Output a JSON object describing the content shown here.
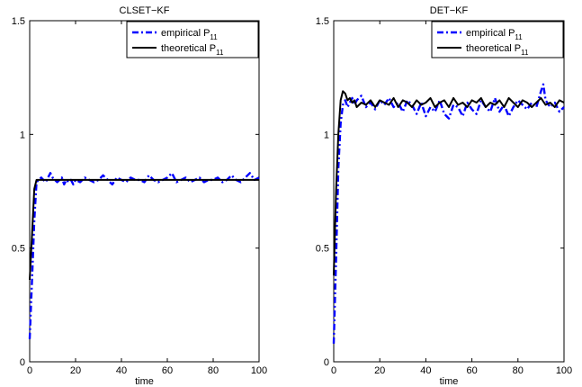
{
  "chart_data": [
    {
      "type": "line",
      "title": "CLSET−KF",
      "xlabel": "time",
      "ylabel": "",
      "xlim": [
        0,
        100
      ],
      "ylim": [
        0,
        1.5
      ],
      "xticks": [
        0,
        20,
        40,
        60,
        80,
        100
      ],
      "yticks": [
        0,
        0.5,
        1,
        1.5
      ],
      "xtick_labels": [
        "0",
        "20",
        "40",
        "60",
        "80",
        "100"
      ],
      "ytick_labels": [
        "0",
        "0.5",
        "1",
        "1.5"
      ],
      "grid": false,
      "legend_position": "top-right",
      "series": [
        {
          "name": "empirical P11",
          "label_main": "empirical P",
          "label_sub": "11",
          "color": "#0000ff",
          "style": "dash-dot",
          "x": [
            0,
            1,
            2,
            3,
            4,
            5,
            6,
            7,
            8,
            9,
            10,
            11,
            12,
            13,
            14,
            15,
            16,
            17,
            18,
            19,
            20,
            22,
            24,
            26,
            28,
            30,
            32,
            34,
            36,
            38,
            40,
            42,
            44,
            46,
            48,
            50,
            52,
            54,
            56,
            58,
            60,
            62,
            64,
            66,
            68,
            70,
            72,
            74,
            76,
            78,
            80,
            82,
            84,
            86,
            88,
            90,
            92,
            94,
            96,
            98,
            100
          ],
          "y": [
            0.1,
            0.35,
            0.62,
            0.79,
            0.8,
            0.81,
            0.8,
            0.79,
            0.81,
            0.83,
            0.81,
            0.8,
            0.79,
            0.8,
            0.81,
            0.78,
            0.8,
            0.79,
            0.8,
            0.78,
            0.8,
            0.79,
            0.81,
            0.8,
            0.79,
            0.8,
            0.82,
            0.8,
            0.78,
            0.81,
            0.8,
            0.79,
            0.81,
            0.8,
            0.8,
            0.79,
            0.82,
            0.8,
            0.79,
            0.8,
            0.81,
            0.83,
            0.79,
            0.8,
            0.81,
            0.79,
            0.8,
            0.81,
            0.79,
            0.8,
            0.8,
            0.81,
            0.79,
            0.8,
            0.82,
            0.8,
            0.79,
            0.81,
            0.83,
            0.8,
            0.81
          ]
        },
        {
          "name": "theoretical P11",
          "label_main": "theoretical P",
          "label_sub": "11",
          "color": "#000000",
          "style": "solid",
          "x": [
            0,
            1,
            2,
            3,
            4,
            5,
            6,
            8,
            10,
            15,
            20,
            30,
            40,
            50,
            60,
            70,
            80,
            90,
            100
          ],
          "y": [
            0.36,
            0.55,
            0.76,
            0.8,
            0.8,
            0.8,
            0.8,
            0.8,
            0.8,
            0.8,
            0.8,
            0.8,
            0.8,
            0.8,
            0.8,
            0.8,
            0.8,
            0.8,
            0.8
          ]
        }
      ]
    },
    {
      "type": "line",
      "title": "DET−KF",
      "xlabel": "time",
      "ylabel": "",
      "xlim": [
        0,
        100
      ],
      "ylim": [
        0,
        1.5
      ],
      "xticks": [
        0,
        20,
        40,
        60,
        80,
        100
      ],
      "yticks": [
        0,
        0.5,
        1,
        1.5
      ],
      "xtick_labels": [
        "0",
        "20",
        "40",
        "60",
        "80",
        "100"
      ],
      "ytick_labels": [
        "0",
        "0.5",
        "1",
        "1.5"
      ],
      "grid": false,
      "legend_position": "top-right",
      "series": [
        {
          "name": "empirical P11",
          "label_main": "empirical P",
          "label_sub": "11",
          "color": "#0000ff",
          "style": "dash-dot",
          "x": [
            0,
            1,
            2,
            3,
            4,
            5,
            6,
            7,
            8,
            9,
            10,
            12,
            14,
            16,
            18,
            20,
            22,
            24,
            26,
            28,
            30,
            32,
            34,
            36,
            38,
            40,
            42,
            44,
            46,
            48,
            50,
            52,
            54,
            56,
            58,
            60,
            62,
            64,
            66,
            68,
            70,
            72,
            74,
            76,
            78,
            80,
            82,
            84,
            86,
            88,
            90,
            91,
            92,
            94,
            96,
            98,
            100
          ],
          "y": [
            0.08,
            0.45,
            0.85,
            1.05,
            1.13,
            1.15,
            1.12,
            1.14,
            1.16,
            1.13,
            1.15,
            1.17,
            1.12,
            1.14,
            1.11,
            1.15,
            1.13,
            1.16,
            1.12,
            1.14,
            1.1,
            1.15,
            1.13,
            1.09,
            1.14,
            1.08,
            1.12,
            1.1,
            1.15,
            1.09,
            1.07,
            1.13,
            1.12,
            1.08,
            1.14,
            1.11,
            1.09,
            1.15,
            1.12,
            1.1,
            1.16,
            1.1,
            1.13,
            1.08,
            1.12,
            1.15,
            1.13,
            1.11,
            1.14,
            1.12,
            1.19,
            1.22,
            1.15,
            1.12,
            1.14,
            1.1,
            1.12
          ]
        },
        {
          "name": "theoretical P11",
          "label_main": "theoretical P",
          "label_sub": "11",
          "color": "#000000",
          "style": "solid",
          "x": [
            0,
            1,
            2,
            3,
            4,
            5,
            6,
            7,
            8,
            9,
            10,
            12,
            14,
            16,
            18,
            20,
            22,
            24,
            26,
            28,
            30,
            32,
            34,
            36,
            38,
            40,
            42,
            44,
            46,
            48,
            50,
            52,
            54,
            56,
            58,
            60,
            62,
            64,
            66,
            68,
            70,
            72,
            74,
            76,
            78,
            80,
            82,
            84,
            86,
            88,
            90,
            92,
            94,
            96,
            98,
            100
          ],
          "y": [
            0.38,
            0.75,
            1.0,
            1.15,
            1.19,
            1.18,
            1.15,
            1.16,
            1.14,
            1.15,
            1.12,
            1.14,
            1.13,
            1.15,
            1.12,
            1.15,
            1.14,
            1.13,
            1.16,
            1.12,
            1.15,
            1.14,
            1.12,
            1.15,
            1.13,
            1.14,
            1.16,
            1.12,
            1.14,
            1.15,
            1.12,
            1.16,
            1.13,
            1.14,
            1.12,
            1.15,
            1.14,
            1.16,
            1.12,
            1.14,
            1.13,
            1.15,
            1.12,
            1.16,
            1.14,
            1.12,
            1.15,
            1.14,
            1.12,
            1.14,
            1.16,
            1.13,
            1.14,
            1.12,
            1.15,
            1.14
          ]
        }
      ]
    }
  ]
}
